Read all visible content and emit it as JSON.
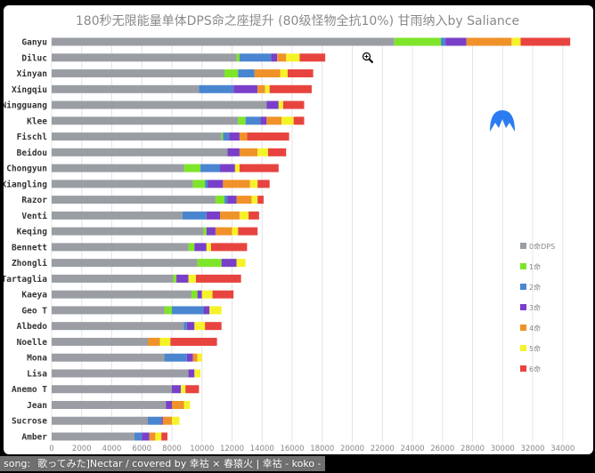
{
  "chart_data": {
    "type": "bar",
    "orientation": "horizontal",
    "stacked": true,
    "title": "180秒无限能量单体DPS命之座提升 (80级怪物全抗10%)    甘雨纳入by Saliance",
    "xlabel": "",
    "ylabel": "",
    "xlim": [
      0,
      35000
    ],
    "xticks": [
      0,
      2000,
      4000,
      6000,
      8000,
      10000,
      12000,
      14000,
      16000,
      18000,
      20000,
      22000,
      24000,
      26000,
      28000,
      30000,
      32000,
      34000
    ],
    "grid": true,
    "legend_position": "right",
    "series": [
      {
        "name": "0命DPS",
        "color": "#9a9ea4"
      },
      {
        "name": "1命",
        "color": "#7ee52a"
      },
      {
        "name": "2命",
        "color": "#4a86d0"
      },
      {
        "name": "3命",
        "color": "#7a3fc8"
      },
      {
        "name": "4命",
        "color": "#f0922a"
      },
      {
        "name": "5命",
        "color": "#f6f22a"
      },
      {
        "name": "6命",
        "color": "#e8443f"
      }
    ],
    "value_note": "cumulative DPS at C0..C6",
    "categories": [
      {
        "name": "Ganyu",
        "cum": [
          22800,
          25900,
          26200,
          27600,
          30600,
          31200,
          34500
        ]
      },
      {
        "name": "Diluc",
        "cum": [
          12300,
          12500,
          14600,
          15000,
          15600,
          16500,
          18200
        ]
      },
      {
        "name": "Xinyan",
        "cum": [
          11500,
          12400,
          13500,
          13500,
          15200,
          15700,
          17400
        ]
      },
      {
        "name": "Xingqiu",
        "cum": [
          9800,
          9800,
          12100,
          13700,
          14200,
          14500,
          17300
        ]
      },
      {
        "name": "Ningguang",
        "cum": [
          14300,
          14300,
          14300,
          15100,
          15100,
          15400,
          16800
        ]
      },
      {
        "name": "Klee",
        "cum": [
          12400,
          12900,
          13900,
          14300,
          15300,
          16100,
          16800
        ]
      },
      {
        "name": "Fischl",
        "cum": [
          11300,
          11400,
          11800,
          12500,
          13000,
          13000,
          15800
        ]
      },
      {
        "name": "Beidou",
        "cum": [
          11700,
          11700,
          11700,
          12500,
          13700,
          14400,
          15600
        ]
      },
      {
        "name": "Chongyun",
        "cum": [
          8800,
          9900,
          11200,
          12200,
          12200,
          12500,
          15100
        ]
      },
      {
        "name": "Xiangling",
        "cum": [
          9400,
          10200,
          10400,
          11400,
          13200,
          13700,
          14500
        ]
      },
      {
        "name": "Razor",
        "cum": [
          10900,
          11500,
          11700,
          12300,
          13300,
          13700,
          14100
        ]
      },
      {
        "name": "Venti",
        "cum": [
          8700,
          8700,
          10300,
          11200,
          12500,
          13100,
          13800
        ]
      },
      {
        "name": "Keqing",
        "cum": [
          10100,
          10300,
          10300,
          10900,
          12000,
          12400,
          13700
        ]
      },
      {
        "name": "Bennett",
        "cum": [
          9100,
          9500,
          9500,
          10300,
          10300,
          10600,
          13000
        ]
      },
      {
        "name": "Zhongli",
        "cum": [
          9700,
          11300,
          11300,
          12300,
          12300,
          12900,
          12900
        ]
      },
      {
        "name": "Tartaglia",
        "cum": [
          8100,
          8300,
          8300,
          9100,
          9100,
          9600,
          12600
        ]
      },
      {
        "name": "Kaeya",
        "cum": [
          9300,
          9700,
          9700,
          10000,
          10000,
          10700,
          12100
        ]
      },
      {
        "name": "Geo T",
        "cum": [
          7500,
          8000,
          10100,
          10500,
          10500,
          11300,
          11300
        ]
      },
      {
        "name": "Albedo",
        "cum": [
          8800,
          8800,
          9000,
          9500,
          9500,
          10200,
          11300
        ]
      },
      {
        "name": "Noelle",
        "cum": [
          6400,
          6400,
          6400,
          6400,
          7200,
          7900,
          11000
        ]
      },
      {
        "name": "Mona",
        "cum": [
          7500,
          7500,
          9000,
          9400,
          9700,
          10000,
          10000
        ]
      },
      {
        "name": "Lisa",
        "cum": [
          9100,
          9100,
          9100,
          9500,
          9500,
          9900,
          9900
        ]
      },
      {
        "name": "Anemo T",
        "cum": [
          8000,
          8000,
          8000,
          8600,
          8600,
          8900,
          9800
        ]
      },
      {
        "name": "Jean",
        "cum": [
          7600,
          7600,
          7600,
          8000,
          8800,
          9200,
          9200
        ]
      },
      {
        "name": "Sucrose",
        "cum": [
          6400,
          6400,
          7300,
          7400,
          8000,
          8500,
          8500
        ]
      },
      {
        "name": "Amber",
        "cum": [
          5500,
          5500,
          6000,
          6500,
          6900,
          7300,
          7700
        ]
      }
    ]
  },
  "overlay": {
    "subtitle_line1": "song:",
    "subtitle_line2": "歌ってみた]Nectar / covered by 幸祜 × 春猿火 | 幸祜 - koko -",
    "logo_icon": "blue-mountain-logo",
    "cursor_icon": "zoom-in-cursor"
  }
}
